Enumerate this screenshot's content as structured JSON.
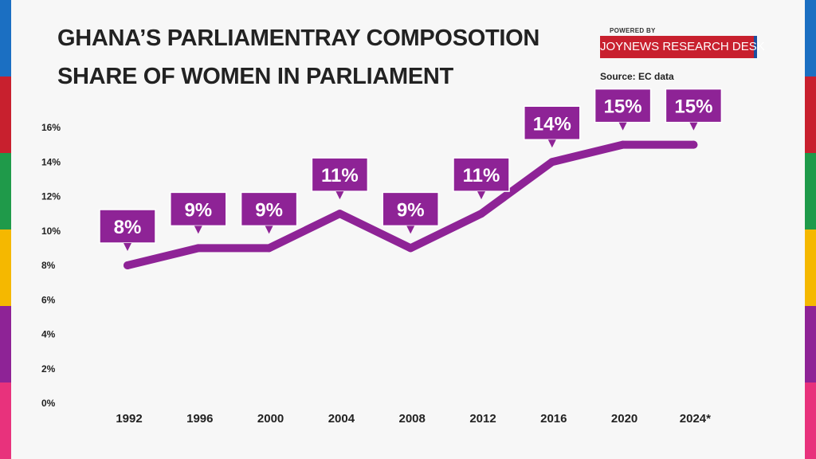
{
  "header": {
    "title": "GHANA’S PARLIAMENTRAY COMPOSOTION",
    "subtitle": "SHARE OF WOMEN IN PARLIAMENT",
    "powered_by": "POWERED BY",
    "brand": "JOYNEWS RESEARCH DESK",
    "source": "Source: EC data"
  },
  "colors": {
    "line": "#8e2396",
    "label_bg": "#8e2396",
    "brand_red": "#c8202e",
    "stripes": [
      "#1b6fc2",
      "#c8202e",
      "#1f9a4a",
      "#f5b800",
      "#8e2396",
      "#e8327c"
    ]
  },
  "chart_data": {
    "type": "line",
    "title": "SHARE OF WOMEN IN PARLIAMENT",
    "xlabel": "",
    "ylabel": "",
    "categories": [
      "1992",
      "1996",
      "2000",
      "2004",
      "2008",
      "2012",
      "2016",
      "2020",
      "2024*"
    ],
    "values": [
      8,
      9,
      9,
      11,
      9,
      11,
      14,
      15,
      15
    ],
    "data_labels": [
      "8%",
      "9%",
      "9%",
      "11%",
      "9%",
      "11%",
      "14%",
      "15%",
      "15%"
    ],
    "yticks": [
      "0%",
      "2%",
      "4%",
      "6%",
      "8%",
      "10%",
      "12%",
      "14%",
      "16%"
    ],
    "ylim": [
      0,
      16
    ],
    "grid": false,
    "legend": "none"
  }
}
